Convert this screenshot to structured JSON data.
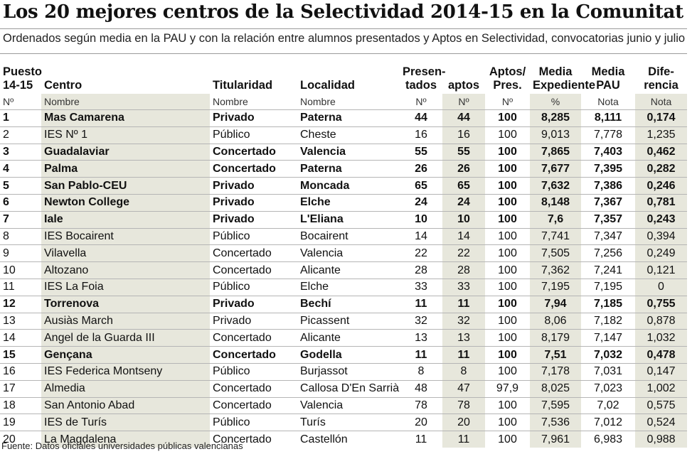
{
  "title": "Los 20 mejores centros de la Selectividad 2014-15 en la Comunitat",
  "subtitle": "Ordenados según media  en la PAU y con la relación entre alumnos presentados y Aptos en Selectividad, convocatorias junio y julio",
  "headers": {
    "puesto_1": "Puesto",
    "puesto_2": "14-15",
    "centro": "Centro",
    "titularidad": "Titularidad",
    "localidad": "Localidad",
    "presentados_1": "Presen-",
    "presentados_2": "tados",
    "aptos": "aptos",
    "aptos_pres_1": "Aptos/",
    "aptos_pres_2": "Pres.",
    "media_exp_1": "Media",
    "media_exp_2": "Expediente",
    "media_pau_1": "Media",
    "media_pau_2": "PAU",
    "diferencia_1": "Dife-",
    "diferencia_2": "rencia"
  },
  "units": {
    "puesto": "Nº",
    "centro": "Nombre",
    "titularidad": "Nombre",
    "localidad": "Nombre",
    "presentados": "Nº",
    "aptos": "Nº",
    "aptos_pres": "Nº",
    "media_exp": "%",
    "media_pau": "Nota",
    "diferencia": "Nota"
  },
  "rows": [
    {
      "pos": "1",
      "centro": "Mas Camarena",
      "tit": "Privado",
      "loc": "Paterna",
      "pres": "44",
      "aptos": "44",
      "ratio": "100",
      "exp": "8,285",
      "pau": "8,111",
      "dif": "0,174",
      "bold": true
    },
    {
      "pos": "2",
      "centro": "IES Nº 1",
      "tit": "Público",
      "loc": "Cheste",
      "pres": "16",
      "aptos": "16",
      "ratio": "100",
      "exp": "9,013",
      "pau": "7,778",
      "dif": "1,235",
      "bold": false
    },
    {
      "pos": "3",
      "centro": "Guadalaviar",
      "tit": "Concertado",
      "loc": "Valencia",
      "pres": "55",
      "aptos": "55",
      "ratio": "100",
      "exp": "7,865",
      "pau": "7,403",
      "dif": "0,462",
      "bold": true
    },
    {
      "pos": "4",
      "centro": "Palma",
      "tit": "Concertado",
      "loc": "Paterna",
      "pres": "26",
      "aptos": "26",
      "ratio": "100",
      "exp": "7,677",
      "pau": "7,395",
      "dif": "0,282",
      "bold": true
    },
    {
      "pos": "5",
      "centro": "San Pablo-CEU",
      "tit": "Privado",
      "loc": "Moncada",
      "pres": "65",
      "aptos": "65",
      "ratio": "100",
      "exp": "7,632",
      "pau": "7,386",
      "dif": "0,246",
      "bold": true
    },
    {
      "pos": "6",
      "centro": "Newton College",
      "tit": "Privado",
      "loc": "Elche",
      "pres": "24",
      "aptos": "24",
      "ratio": "100",
      "exp": "8,148",
      "pau": "7,367",
      "dif": "0,781",
      "bold": true
    },
    {
      "pos": "7",
      "centro": "Iale",
      "tit": "Privado",
      "loc": "L'Eliana",
      "pres": "10",
      "aptos": "10",
      "ratio": "100",
      "exp": "7,6",
      "pau": "7,357",
      "dif": "0,243",
      "bold": true
    },
    {
      "pos": "8",
      "centro": "IES Bocairent",
      "tit": "Público",
      "loc": "Bocairent",
      "pres": "14",
      "aptos": "14",
      "ratio": "100",
      "exp": "7,741",
      "pau": "7,347",
      "dif": "0,394",
      "bold": false
    },
    {
      "pos": "9",
      "centro": "Vilavella",
      "tit": "Concertado",
      "loc": "Valencia",
      "pres": "22",
      "aptos": "22",
      "ratio": "100",
      "exp": "7,505",
      "pau": "7,256",
      "dif": "0,249",
      "bold": false
    },
    {
      "pos": "10",
      "centro": "Altozano",
      "tit": "Concertado",
      "loc": "Alicante",
      "pres": "28",
      "aptos": "28",
      "ratio": "100",
      "exp": "7,362",
      "pau": "7,241",
      "dif": "0,121",
      "bold": false
    },
    {
      "pos": "11",
      "centro": "IES La Foia",
      "tit": "Público",
      "loc": "Elche",
      "pres": "33",
      "aptos": "33",
      "ratio": "100",
      "exp": "7,195",
      "pau": "7,195",
      "dif": "0",
      "bold": false
    },
    {
      "pos": "12",
      "centro": "Torrenova",
      "tit": "Privado",
      "loc": "Bechí",
      "pres": "11",
      "aptos": "11",
      "ratio": "100",
      "exp": "7,94",
      "pau": "7,185",
      "dif": "0,755",
      "bold": true
    },
    {
      "pos": "13",
      "centro": "Ausiàs March",
      "tit": "Privado",
      "loc": "Picassent",
      "pres": "32",
      "aptos": "32",
      "ratio": "100",
      "exp": "8,06",
      "pau": "7,182",
      "dif": "0,878",
      "bold": false
    },
    {
      "pos": "14",
      "centro": "Angel de la Guarda III",
      "tit": "Concertado",
      "loc": "Alicante",
      "pres": "13",
      "aptos": "13",
      "ratio": "100",
      "exp": "8,179",
      "pau": "7,147",
      "dif": "1,032",
      "bold": false
    },
    {
      "pos": "15",
      "centro": "Gençana",
      "tit": "Concertado",
      "loc": "Godella",
      "pres": "11",
      "aptos": "11",
      "ratio": "100",
      "exp": "7,51",
      "pau": "7,032",
      "dif": "0,478",
      "bold": true
    },
    {
      "pos": "16",
      "centro": "IES Federica Montseny",
      "tit": "Público",
      "loc": "Burjassot",
      "pres": "8",
      "aptos": "8",
      "ratio": "100",
      "exp": "7,178",
      "pau": "7,031",
      "dif": "0,147",
      "bold": false
    },
    {
      "pos": "17",
      "centro": "Almedia",
      "tit": "Concertado",
      "loc": "Callosa D'En Sarrià",
      "pres": "48",
      "aptos": "47",
      "ratio": "97,9",
      "exp": "8,025",
      "pau": "7,023",
      "dif": "1,002",
      "bold": false
    },
    {
      "pos": "18",
      "centro": "San Antonio Abad",
      "tit": "Concertado",
      "loc": "Valencia",
      "pres": "78",
      "aptos": "78",
      "ratio": "100",
      "exp": "7,595",
      "pau": "7,02",
      "dif": "0,575",
      "bold": false
    },
    {
      "pos": "19",
      "centro": "IES de Turís",
      "tit": "Público",
      "loc": "Turís",
      "pres": "20",
      "aptos": "20",
      "ratio": "100",
      "exp": "7,536",
      "pau": "7,012",
      "dif": "0,524",
      "bold": false
    },
    {
      "pos": "20",
      "centro": "La Magdalena",
      "tit": "Concertado",
      "loc": "Castellón",
      "pres": "11",
      "aptos": "11",
      "ratio": "100",
      "exp": "7,961",
      "pau": "6,983",
      "dif": "0,988",
      "bold": false
    }
  ],
  "footer": "Fuente: Datos oficiales universidades públicas valencianas"
}
